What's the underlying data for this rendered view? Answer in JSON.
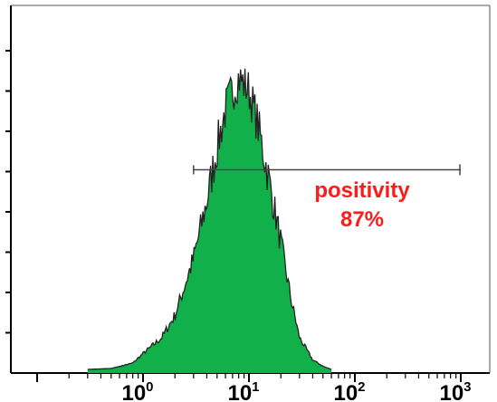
{
  "chart_data": {
    "type": "area",
    "title": "",
    "xlabel": "",
    "ylabel": "",
    "x_scale": "log",
    "xlim": [
      0.1,
      1000
    ],
    "x_tick_labels": [
      {
        "base": "10",
        "exp": "0",
        "value": 1
      },
      {
        "base": "10",
        "exp": "1",
        "value": 10
      },
      {
        "base": "10",
        "exp": "2",
        "value": 100
      },
      {
        "base": "10",
        "exp": "3",
        "value": 1000
      }
    ],
    "y_tick_count": 8,
    "grid": false,
    "fill_color": "#11b04a",
    "line_color": "#222222",
    "annotation_color": "#ff1a1a",
    "histogram": {
      "x": [
        0.3,
        0.5,
        0.8,
        1.0,
        1.5,
        2.0,
        3.0,
        4.0,
        5.0,
        6.0,
        7.0,
        8.0,
        10.0,
        12.0,
        15.0,
        20.0,
        25.0,
        30.0,
        40.0,
        50.0,
        60.0
      ],
      "y": [
        0,
        0.3,
        2,
        5,
        10,
        17,
        35,
        53,
        70,
        82,
        88,
        92,
        88,
        78,
        62,
        40,
        22,
        10,
        3,
        1,
        0
      ]
    },
    "gate": {
      "x_start": 3.0,
      "x_end": 1000,
      "level": 63
    },
    "annotation": {
      "line1": "positivity",
      "line2": "87%"
    }
  }
}
